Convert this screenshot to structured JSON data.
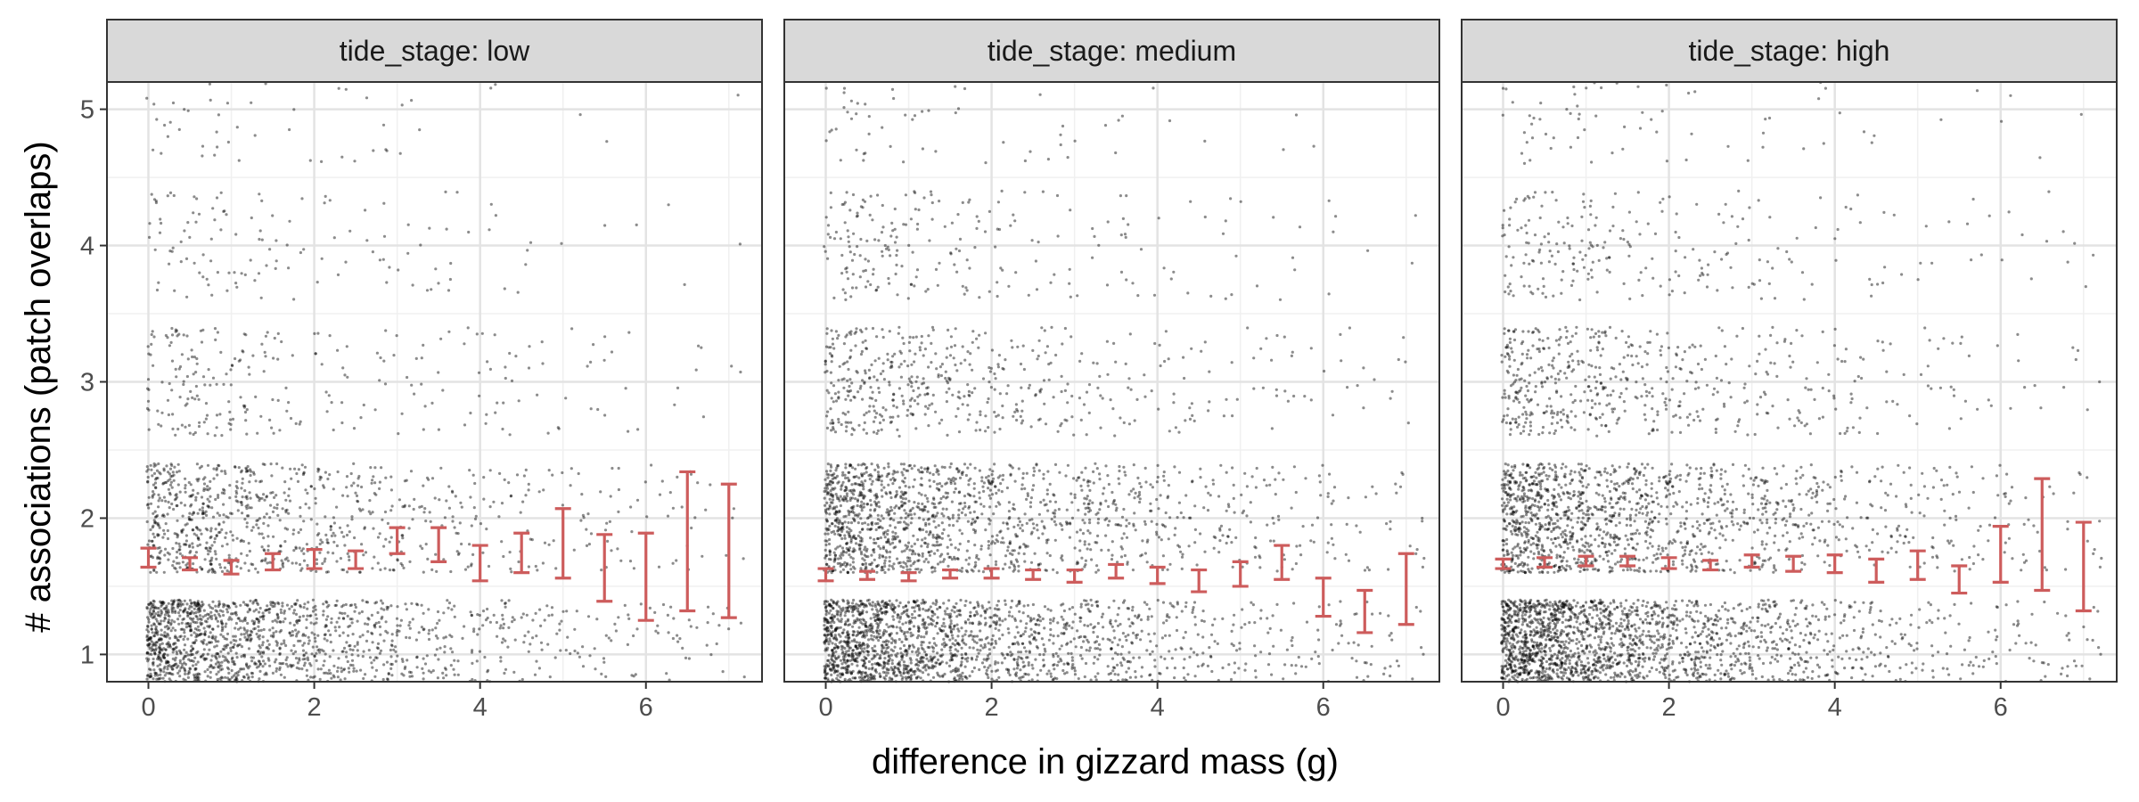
{
  "chart_data": {
    "type": "scatter",
    "layout": "faceted, 3 panels in one row",
    "xlabel": "difference in gizzard mass (g)",
    "ylabel": "# associations (patch overlaps)",
    "xlim": [
      -0.5,
      7.4
    ],
    "ylim": [
      0.8,
      5.2
    ],
    "x_ticks": [
      0,
      2,
      4,
      6
    ],
    "y_ticks": [
      1,
      2,
      3,
      4,
      5
    ],
    "x_tick_labels": [
      "0",
      "2",
      "4",
      "6"
    ],
    "y_tick_labels": [
      "1",
      "2",
      "3",
      "4",
      "5"
    ],
    "grid": true,
    "point_color": "#000000",
    "errorbar_color": "#cd5c5c",
    "strip_fill": "#d9d9d9",
    "points_note": "jittered raw observations, count values 1-5, dense near small x",
    "facets": [
      {
        "label": "tide_stage: low",
        "errorbars": [
          {
            "x": 0.0,
            "low": 1.64,
            "high": 1.78
          },
          {
            "x": 0.5,
            "low": 1.62,
            "high": 1.71
          },
          {
            "x": 1.0,
            "low": 1.59,
            "high": 1.69
          },
          {
            "x": 1.5,
            "low": 1.62,
            "high": 1.74
          },
          {
            "x": 2.0,
            "low": 1.63,
            "high": 1.77
          },
          {
            "x": 2.5,
            "low": 1.63,
            "high": 1.76
          },
          {
            "x": 3.0,
            "low": 1.74,
            "high": 1.93
          },
          {
            "x": 3.5,
            "low": 1.68,
            "high": 1.93
          },
          {
            "x": 4.0,
            "low": 1.54,
            "high": 1.8
          },
          {
            "x": 4.5,
            "low": 1.6,
            "high": 1.89
          },
          {
            "x": 5.0,
            "low": 1.56,
            "high": 2.07
          },
          {
            "x": 5.5,
            "low": 1.39,
            "high": 1.88
          },
          {
            "x": 6.0,
            "low": 1.25,
            "high": 1.89
          },
          {
            "x": 6.5,
            "low": 1.32,
            "high": 2.34
          },
          {
            "x": 7.0,
            "low": 1.27,
            "high": 2.25
          }
        ]
      },
      {
        "label": "tide_stage: medium",
        "errorbars": [
          {
            "x": 0.0,
            "low": 1.54,
            "high": 1.63
          },
          {
            "x": 0.5,
            "low": 1.55,
            "high": 1.61
          },
          {
            "x": 1.0,
            "low": 1.54,
            "high": 1.6
          },
          {
            "x": 1.5,
            "low": 1.56,
            "high": 1.62
          },
          {
            "x": 2.0,
            "low": 1.56,
            "high": 1.63
          },
          {
            "x": 2.5,
            "low": 1.55,
            "high": 1.62
          },
          {
            "x": 3.0,
            "low": 1.53,
            "high": 1.62
          },
          {
            "x": 3.5,
            "low": 1.56,
            "high": 1.66
          },
          {
            "x": 4.0,
            "low": 1.52,
            "high": 1.64
          },
          {
            "x": 4.5,
            "low": 1.46,
            "high": 1.62
          },
          {
            "x": 5.0,
            "low": 1.5,
            "high": 1.68
          },
          {
            "x": 5.5,
            "low": 1.55,
            "high": 1.8
          },
          {
            "x": 6.0,
            "low": 1.28,
            "high": 1.56
          },
          {
            "x": 6.5,
            "low": 1.16,
            "high": 1.47
          },
          {
            "x": 7.0,
            "low": 1.22,
            "high": 1.74
          }
        ]
      },
      {
        "label": "tide_stage: high",
        "errorbars": [
          {
            "x": 0.0,
            "low": 1.63,
            "high": 1.7
          },
          {
            "x": 0.5,
            "low": 1.64,
            "high": 1.71
          },
          {
            "x": 1.0,
            "low": 1.65,
            "high": 1.72
          },
          {
            "x": 1.5,
            "low": 1.65,
            "high": 1.72
          },
          {
            "x": 2.0,
            "low": 1.63,
            "high": 1.71
          },
          {
            "x": 2.5,
            "low": 1.62,
            "high": 1.69
          },
          {
            "x": 3.0,
            "low": 1.64,
            "high": 1.73
          },
          {
            "x": 3.5,
            "low": 1.61,
            "high": 1.72
          },
          {
            "x": 4.0,
            "low": 1.6,
            "high": 1.73
          },
          {
            "x": 4.5,
            "low": 1.53,
            "high": 1.7
          },
          {
            "x": 5.0,
            "low": 1.55,
            "high": 1.76
          },
          {
            "x": 5.5,
            "low": 1.45,
            "high": 1.65
          },
          {
            "x": 6.0,
            "low": 1.53,
            "high": 1.94
          },
          {
            "x": 6.5,
            "low": 1.47,
            "high": 2.29
          },
          {
            "x": 7.0,
            "low": 1.32,
            "high": 1.97
          }
        ]
      }
    ]
  }
}
